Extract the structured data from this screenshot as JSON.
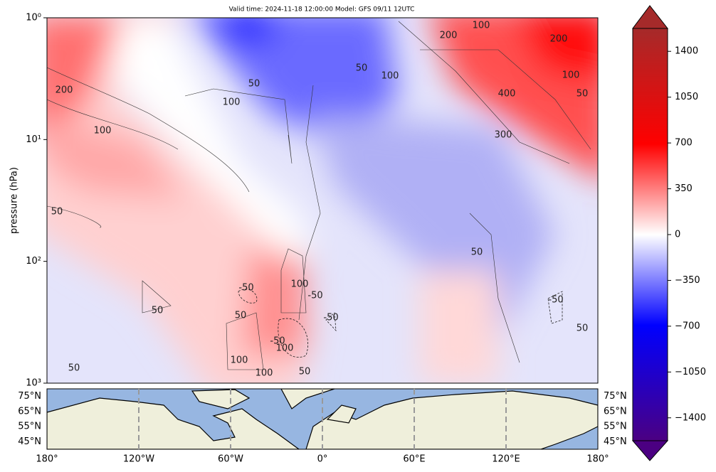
{
  "chart_data": {
    "type": "contour",
    "title": "Valid time: 2024-11-18 12:00:00 Model: GFS 09/11 12UTC",
    "y_label": "pressure (hPa)",
    "y_log": true,
    "ylim": [
      1000,
      1
    ],
    "yticks": [
      {
        "value": 1,
        "label": "10⁰"
      },
      {
        "value": 10,
        "label": "10¹"
      },
      {
        "value": 100,
        "label": "10²"
      },
      {
        "value": 1000,
        "label": "10³"
      }
    ],
    "contour_labels": [
      200,
      100,
      50,
      50,
      100,
      50,
      100,
      200,
      100,
      200,
      100,
      400,
      50,
      300,
      50,
      100,
      -50,
      -50,
      -50,
      50,
      50,
      -50,
      100,
      100,
      100,
      50,
      50,
      -50,
      50
    ],
    "colorbar": {
      "clim": [
        -1575,
        1575
      ],
      "ticks": [
        {
          "value": -1400,
          "label": "−1400"
        },
        {
          "value": -1050,
          "label": "−1050"
        },
        {
          "value": -700,
          "label": "−700"
        },
        {
          "value": -350,
          "label": "−350"
        },
        0,
        350,
        700,
        1050,
        1400
      ]
    },
    "map": {
      "xlim": [
        -180,
        180
      ],
      "xticks": [
        {
          "value": -180,
          "label": "180°"
        },
        {
          "value": -120,
          "label": "120°W"
        },
        {
          "value": -60,
          "label": "60°W"
        },
        {
          "value": 0,
          "label": "0°"
        },
        {
          "value": 60,
          "label": "60°E"
        },
        {
          "value": 120,
          "label": "120°E"
        },
        {
          "value": 180,
          "label": "180°"
        }
      ],
      "ylim": [
        40,
        80
      ],
      "yticks": [
        {
          "value": 75,
          "label": "75°N"
        },
        {
          "value": 65,
          "label": "65°N"
        },
        {
          "value": 55,
          "label": "55°N"
        },
        {
          "value": 45,
          "label": "45°N"
        }
      ]
    }
  }
}
